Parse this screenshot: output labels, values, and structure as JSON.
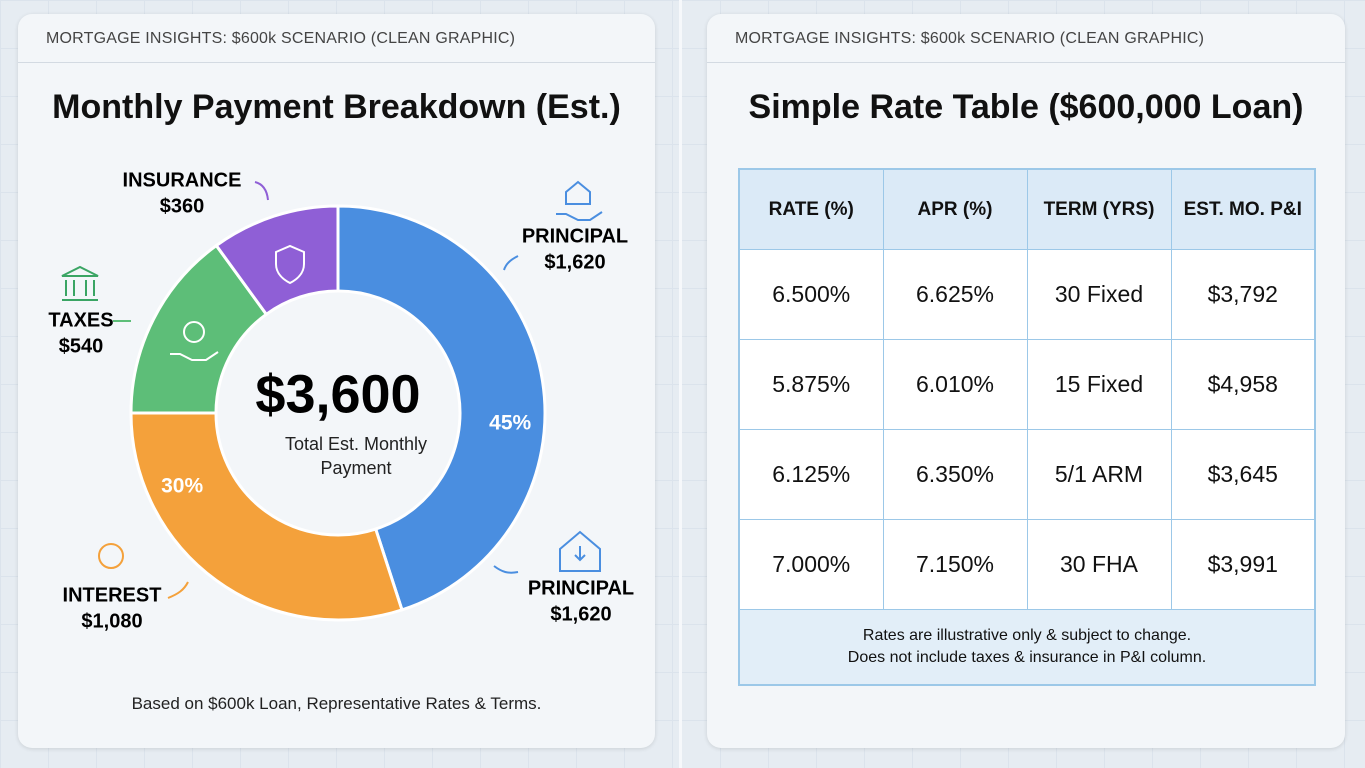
{
  "header_left": "MORTGAGE INSIGHTS: $600k SCENARIO (CLEAN GRAPHIC)",
  "header_right": "MORTGAGE INSIGHTS: $600k SCENARIO (CLEAN GRAPHIC)",
  "chart_data": {
    "type": "pie",
    "title": "Monthly Payment Breakdown (Est.)",
    "categories": [
      "PRINCIPAL",
      "INTEREST",
      "TAXES",
      "INSURANCE"
    ],
    "values": [
      1620,
      1080,
      540,
      360
    ],
    "value_labels": [
      "$1,620",
      "$1,080",
      "$540",
      "$360"
    ],
    "percent_labels": [
      "45%",
      "30%",
      null,
      null
    ],
    "colors": [
      "#4a8ee0",
      "#f4a13b",
      "#5dbe78",
      "#8f5fd6"
    ],
    "total": 3600,
    "total_label": "$3,600",
    "center_caption": "Total Est. Monthly Payment",
    "annotations": [
      {
        "text": "PRINCIPAL",
        "sub": "$1,620"
      }
    ],
    "footnote": "Based on $600k Loan, Representative Rates & Terms."
  },
  "table": {
    "title": "Simple Rate Table ($600,000 Loan)",
    "columns": [
      "RATE (%)",
      "APR (%)",
      "TERM (YRS)",
      "EST. MO. P&I"
    ],
    "rows": [
      [
        "6.500%",
        "6.625%",
        "30 Fixed",
        "$3,792"
      ],
      [
        "5.875%",
        "6.010%",
        "15 Fixed",
        "$4,958"
      ],
      [
        "6.125%",
        "6.350%",
        "5/1 ARM",
        "$3,645"
      ],
      [
        "7.000%",
        "7.150%",
        "30 FHA",
        "$3,991"
      ]
    ],
    "notes": [
      "Rates are illustrative only & subject to change.",
      "Does not include taxes & insurance in P&I column."
    ]
  }
}
